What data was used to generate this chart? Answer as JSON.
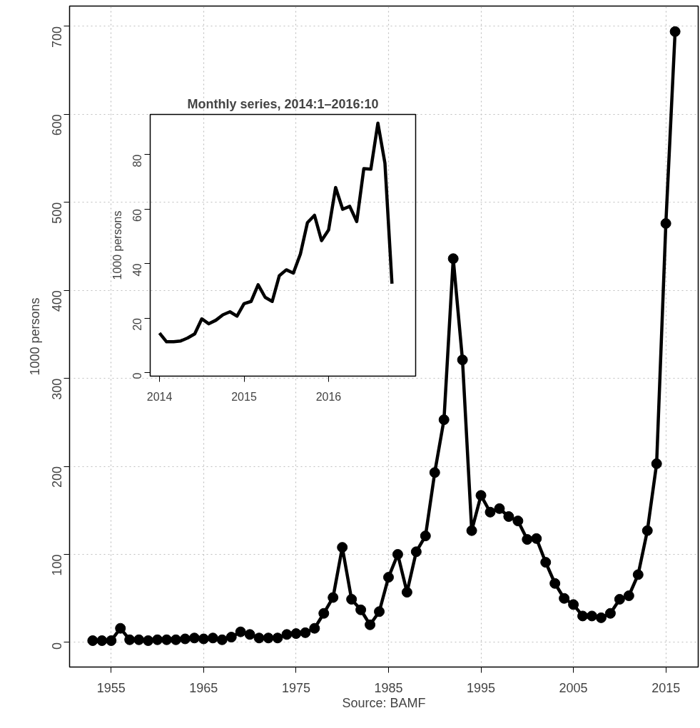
{
  "chart_data": [
    {
      "type": "line",
      "ylabel": "1000 persons",
      "annotations": [
        "Source: BAMF"
      ],
      "marker": "circle",
      "line_style": "solid",
      "grid": true,
      "color": "#000000",
      "x": [
        1953,
        1954,
        1955,
        1956,
        1957,
        1958,
        1959,
        1960,
        1961,
        1962,
        1963,
        1964,
        1965,
        1966,
        1967,
        1968,
        1969,
        1970,
        1971,
        1972,
        1973,
        1974,
        1975,
        1976,
        1977,
        1978,
        1979,
        1980,
        1981,
        1982,
        1983,
        1984,
        1985,
        1986,
        1987,
        1988,
        1989,
        1990,
        1991,
        1992,
        1993,
        1994,
        1995,
        1996,
        1997,
        1998,
        1999,
        2000,
        2001,
        2002,
        2003,
        2004,
        2005,
        2006,
        2007,
        2008,
        2009,
        2010,
        2011,
        2012,
        2013,
        2014,
        2015,
        2016
      ],
      "values": [
        2,
        2,
        2,
        16,
        3,
        3,
        2,
        3,
        3,
        3,
        4,
        5,
        4,
        5,
        3,
        6,
        12,
        9,
        5,
        5,
        5,
        9,
        10,
        11,
        16,
        33,
        51,
        108,
        49,
        37,
        20,
        35,
        74,
        100,
        57,
        103,
        121,
        193,
        253,
        436,
        321,
        127,
        167,
        148,
        152,
        143,
        138,
        117,
        118,
        91,
        67,
        50,
        43,
        30,
        30,
        28,
        33,
        49,
        53,
        77,
        127,
        203,
        476,
        694
      ],
      "xlim": [
        1950.5,
        2018.5
      ],
      "ylim": [
        -28,
        723
      ],
      "xticks": [
        1955,
        1965,
        1975,
        1985,
        1995,
        2005,
        2015
      ],
      "yticks": [
        0,
        100,
        200,
        300,
        400,
        500,
        600,
        700
      ]
    },
    {
      "type": "line",
      "title": "Monthly series, 2014:1–2016:10",
      "ylabel": "1000 persons",
      "marker": "none",
      "line_style": "solid",
      "color": "#000000",
      "x": [
        2014.0,
        2014.0833,
        2014.1667,
        2014.25,
        2014.3333,
        2014.4167,
        2014.5,
        2014.5833,
        2014.6667,
        2014.75,
        2014.8333,
        2014.9167,
        2015.0,
        2015.0833,
        2015.1667,
        2015.25,
        2015.3333,
        2015.4167,
        2015.5,
        2015.5833,
        2015.6667,
        2015.75,
        2015.8333,
        2015.9167,
        2016.0,
        2016.0833,
        2016.1667,
        2016.25,
        2016.3333,
        2016.4167,
        2016.5,
        2016.5833,
        2016.6667,
        2016.75
      ],
      "values": [
        14.5,
        11.3,
        11.3,
        11.6,
        12.7,
        14.2,
        19.7,
        17.9,
        19.2,
        21.2,
        22.3,
        20.7,
        25.3,
        26.1,
        32.2,
        27.6,
        26.1,
        35.5,
        37.7,
        36.5,
        43.5,
        55.0,
        57.7,
        48.4,
        52.3,
        67.9,
        59.9,
        61.0,
        55.4,
        74.8,
        74.6,
        91.5,
        76.8,
        32.6
      ],
      "xlim": [
        2013.89,
        2017.03
      ],
      "ylim": [
        -1.3,
        94.7
      ],
      "xticks": [
        2014,
        2015,
        2016
      ],
      "yticks": [
        0,
        20,
        40,
        60,
        80
      ]
    }
  ]
}
